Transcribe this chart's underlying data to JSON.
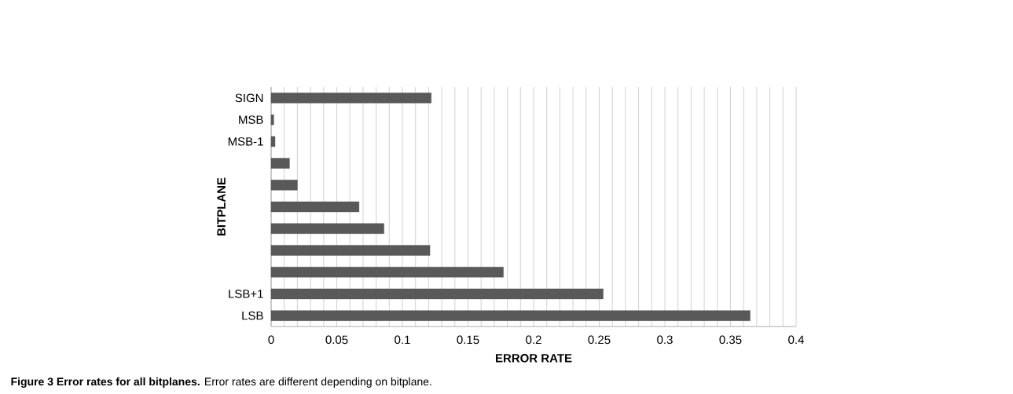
{
  "chart_data": {
    "type": "bar",
    "orientation": "horizontal",
    "categories": [
      "SIGN",
      "MSB",
      "MSB-1",
      null,
      null,
      null,
      null,
      null,
      null,
      "LSB+1",
      "LSB"
    ],
    "values": [
      0.122,
      0.002,
      0.003,
      0.014,
      0.02,
      0.067,
      0.086,
      0.121,
      0.177,
      0.253,
      0.365
    ],
    "color": "#595959",
    "xlim": [
      0,
      0.4
    ],
    "xticks": [
      0,
      0.05,
      0.1,
      0.15,
      0.2,
      0.25,
      0.3,
      0.35,
      0.4
    ],
    "xlabel": "ERROR RATE",
    "ylabel": "BITPLANE",
    "grid": "x",
    "annotations": [
      "**Figure 3 Error rates for all bitplanes.** Error rates are different depending on bitplane."
    ]
  }
}
